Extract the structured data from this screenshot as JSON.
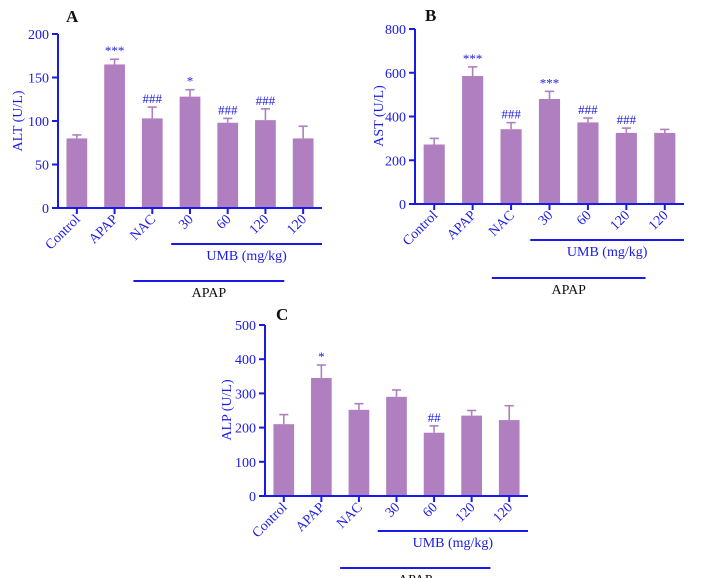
{
  "colors": {
    "bar": "#b07fc0",
    "axis": "#1a1ae6",
    "text": "#111111"
  },
  "chart_data": [
    {
      "panel": "A",
      "type": "bar",
      "categories": [
        "Control",
        "APAP",
        "NAC",
        "30",
        "60",
        "120",
        "120"
      ],
      "values": [
        80,
        165,
        103,
        128,
        98,
        101,
        80
      ],
      "errors": [
        4,
        6,
        13,
        8,
        5,
        13,
        14
      ],
      "significance": [
        "",
        "***",
        "###",
        "*",
        "###",
        "###",
        ""
      ],
      "ylabel": "ALT (U/L)",
      "ylim": [
        0,
        200
      ],
      "yticks": [
        0,
        50,
        100,
        150,
        200
      ],
      "groups": [
        {
          "label": "UMB (mg/kg)",
          "from": 3,
          "to": 6
        },
        {
          "label": "APAP",
          "from": 2,
          "to": 5
        }
      ]
    },
    {
      "panel": "B",
      "type": "bar",
      "categories": [
        "Control",
        "APAP",
        "NAC",
        "30",
        "60",
        "120",
        "120"
      ],
      "values": [
        272,
        585,
        342,
        480,
        373,
        325,
        325
      ],
      "errors": [
        28,
        42,
        30,
        35,
        20,
        22,
        16
      ],
      "significance": [
        "",
        "***",
        "###",
        "***",
        "###",
        "###",
        ""
      ],
      "ylabel": "AST (U/L)",
      "ylim": [
        0,
        800
      ],
      "yticks": [
        0,
        200,
        400,
        600,
        800
      ],
      "groups": [
        {
          "label": "UMB (mg/kg)",
          "from": 3,
          "to": 6
        },
        {
          "label": "APAP",
          "from": 2,
          "to": 5
        }
      ]
    },
    {
      "panel": "C",
      "type": "bar",
      "categories": [
        "Control",
        "APAP",
        "NAC",
        "30",
        "60",
        "120",
        "120"
      ],
      "values": [
        210,
        345,
        252,
        290,
        185,
        235,
        222
      ],
      "errors": [
        28,
        38,
        18,
        20,
        20,
        15,
        42
      ],
      "significance": [
        "",
        "*",
        "",
        "",
        "##",
        "",
        ""
      ],
      "ylabel": "ALP (U/L)",
      "ylim": [
        0,
        500
      ],
      "yticks": [
        0,
        100,
        200,
        300,
        400,
        500
      ],
      "groups": [
        {
          "label": "UMB (mg/kg)",
          "from": 3,
          "to": 6
        },
        {
          "label": "APAP",
          "from": 2,
          "to": 5
        }
      ]
    }
  ]
}
